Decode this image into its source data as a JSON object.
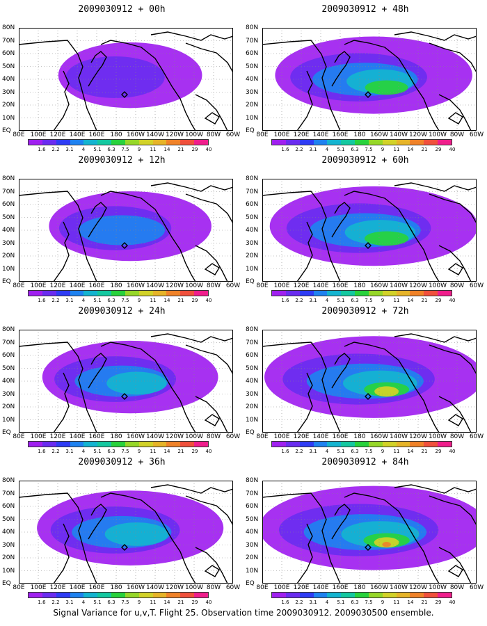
{
  "panels": [
    {
      "title": "2009030912 + 00h",
      "intensity": 0.28
    },
    {
      "title": "2009030912 + 48h",
      "intensity": 0.68
    },
    {
      "title": "2009030912 + 12h",
      "intensity": 0.42
    },
    {
      "title": "2009030912 + 60h",
      "intensity": 0.76
    },
    {
      "title": "2009030912 + 24h",
      "intensity": 0.52
    },
    {
      "title": "2009030912 + 72h",
      "intensity": 0.84
    },
    {
      "title": "2009030912 + 36h",
      "intensity": 0.6
    },
    {
      "title": "2009030912 + 84h",
      "intensity": 0.92
    }
  ],
  "x_tick_labels": [
    "80E",
    "100E",
    "120E",
    "140E",
    "160E",
    "180",
    "160W",
    "140W",
    "120W",
    "100W",
    "80W",
    "60W"
  ],
  "y_tick_labels": [
    "80N",
    "70N",
    "60N",
    "50N",
    "40N",
    "30N",
    "20N",
    "10N",
    "EQ"
  ],
  "colorbar": {
    "labels": [
      "1.6",
      "2.2",
      "3.1",
      "4",
      "5.1",
      "6.3",
      "7.5",
      "9",
      "11",
      "14",
      "21",
      "29",
      "40"
    ],
    "colors": [
      "#a020f0",
      "#6a2cf0",
      "#2e3cf5",
      "#1e82f0",
      "#14b4d0",
      "#14c8a0",
      "#28d23c",
      "#96d728",
      "#d2d228",
      "#e6b428",
      "#f08228",
      "#f0503c",
      "#f01e8c"
    ]
  },
  "footer": "Signal Variance for u,v,T. Flight 25. Observation time 2009030912. 2009030500 ensemble."
}
